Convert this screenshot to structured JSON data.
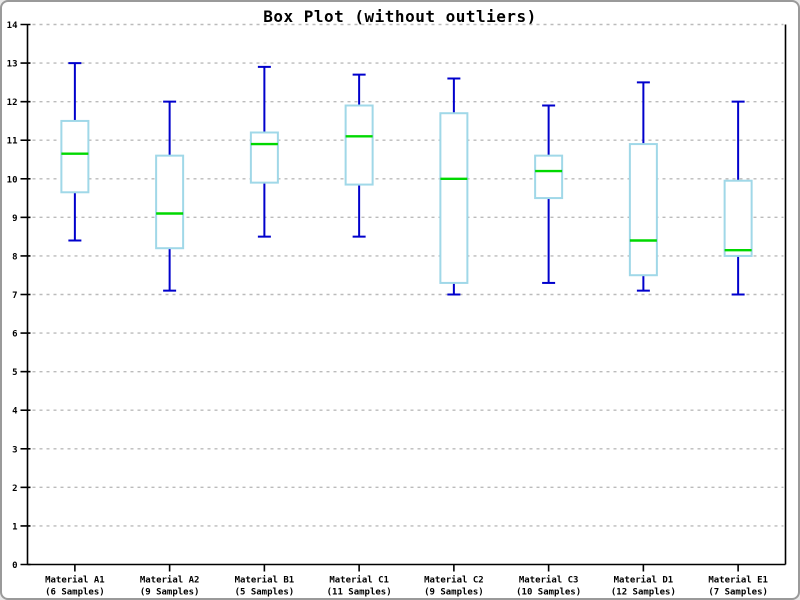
{
  "title": "Box Plot (without outliers)",
  "chart_data": {
    "type": "boxplot",
    "title": "Box Plot (without outliers)",
    "xlabel": "",
    "ylabel": "",
    "ylim": [
      0,
      14
    ],
    "y_ticks": [
      0,
      1,
      2,
      3,
      4,
      5,
      6,
      7,
      8,
      9,
      10,
      11,
      12,
      13,
      14
    ],
    "grid": "horizontal dashed gridlines at every integer",
    "legend": "none",
    "categories": [
      "Material A1",
      "Material A2",
      "Material B1",
      "Material C1",
      "Material C2",
      "Material C3",
      "Material D1",
      "Material E1"
    ],
    "category_sublabels": [
      "(6 Samples)",
      "(9 Samples)",
      "(5 Samples)",
      "(11 Samples)",
      "(9 Samples)",
      "(10 Samples)",
      "(12 Samples)",
      "(7 Samples)"
    ],
    "series": [
      {
        "name": "Material A1",
        "samples": 6,
        "min": 8.4,
        "q1": 9.65,
        "median": 10.65,
        "q3": 11.5,
        "max": 13.0
      },
      {
        "name": "Material A2",
        "samples": 9,
        "min": 7.1,
        "q1": 8.2,
        "median": 9.1,
        "q3": 10.6,
        "max": 12.0
      },
      {
        "name": "Material B1",
        "samples": 5,
        "min": 8.5,
        "q1": 9.9,
        "median": 10.9,
        "q3": 11.2,
        "max": 12.9
      },
      {
        "name": "Material C1",
        "samples": 11,
        "min": 8.5,
        "q1": 9.85,
        "median": 11.1,
        "q3": 11.9,
        "max": 12.7
      },
      {
        "name": "Material C2",
        "samples": 9,
        "min": 7.0,
        "q1": 7.3,
        "median": 10.0,
        "q3": 11.7,
        "max": 12.6
      },
      {
        "name": "Material C3",
        "samples": 10,
        "min": 7.3,
        "q1": 9.5,
        "median": 10.2,
        "q3": 10.6,
        "max": 11.9
      },
      {
        "name": "Material D1",
        "samples": 12,
        "min": 7.1,
        "q1": 7.5,
        "median": 8.4,
        "q3": 10.9,
        "max": 12.5
      },
      {
        "name": "Material E1",
        "samples": 7,
        "min": 7.0,
        "q1": 8.0,
        "median": 8.15,
        "q3": 9.95,
        "max": 12.0
      }
    ],
    "colors": {
      "whisker": "#0000cc",
      "box_outline": "#a0d8e8",
      "box_fill": "#ffffff",
      "median": "#00d800",
      "gridline": "#bbbbbb",
      "axis": "#000000",
      "background": "#ffffff",
      "frame_border": "#9a9a9a"
    }
  }
}
